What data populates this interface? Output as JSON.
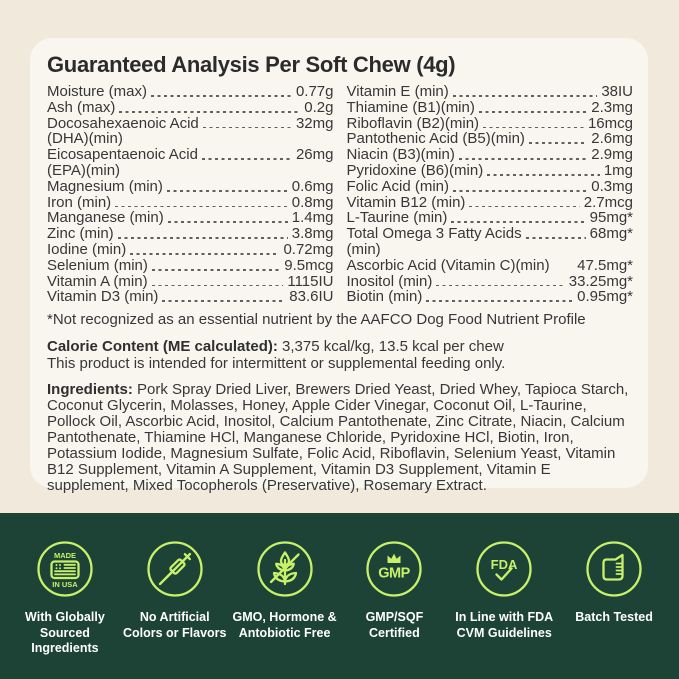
{
  "colors": {
    "page_background": "#f0e9dc",
    "card_background": "#f8f6ef",
    "text_ink": "#373737",
    "band_green": "#1d4336",
    "badge_line_green": "#c7f169",
    "badge_label_white": "#ffffff"
  },
  "panel": {
    "title": "Guaranteed Analysis Per Soft Chew (4g)",
    "analysis_left": [
      {
        "label": "Moisture (max)",
        "value": "0.77g"
      },
      {
        "label": "Ash (max)",
        "value": "0.2g"
      },
      {
        "label": "Docosahexaenoic Acid",
        "label2": "(DHA)(min)",
        "value": "32mg"
      },
      {
        "label": "Eicosapentaenoic Acid",
        "label2": "(EPA)(min)",
        "value": "26mg"
      },
      {
        "label": "Magnesium (min)",
        "value": "0.6mg"
      },
      {
        "label": "Iron (min)",
        "value": "0.8mg"
      },
      {
        "label": "Manganese (min)",
        "value": "1.4mg"
      },
      {
        "label": "Zinc (min)",
        "value": "3.8mg"
      },
      {
        "label": "Iodine (min)",
        "value": "0.72mg"
      },
      {
        "label": "Selenium (min)",
        "value": "9.5mcg"
      },
      {
        "label": "Vitamin A (min)",
        "value": "1115IU"
      },
      {
        "label": "Vitamin D3 (min)",
        "value": "83.6IU"
      }
    ],
    "analysis_right": [
      {
        "label": "Vitamin E (min)",
        "value": "38IU"
      },
      {
        "label": "Thiamine (B1)(min)",
        "value": "2.3mg"
      },
      {
        "label": "Riboflavin (B2)(min)",
        "value": "16mcg"
      },
      {
        "label": "Pantothenic Acid (B5)(min)",
        "value": "2.6mg"
      },
      {
        "label": "Niacin (B3)(min)",
        "value": "2.9mg"
      },
      {
        "label": "Pyridoxine (B6)(min)",
        "value": "1mg"
      },
      {
        "label": "Folic Acid (min)",
        "value": "0.3mg"
      },
      {
        "label": "Vitamin B12 (min)",
        "value": "2.7mcg"
      },
      {
        "label": "L-Taurine (min)",
        "value": "95mg*"
      },
      {
        "label": "Total Omega 3 Fatty Acids",
        "label2": "(min)",
        "value": "68mg*"
      },
      {
        "label": "Ascorbic Acid (Vitamin C)(min)",
        "value": "47.5mg*",
        "leader": false
      },
      {
        "label": "Inositol (min)",
        "value": "33.25mg*"
      },
      {
        "label": "Biotin (min)",
        "value": "0.95mg*"
      }
    ],
    "footnote": "*Not recognized as an essential nutrient by the AAFCO Dog Food Nutrient Profile",
    "calorie_label": "Calorie Content (ME calculated):",
    "calorie_value": "3,375 kcal/kg, 13.5 kcal per chew",
    "feeding_note": "This product is intended for intermittent or supplemental feeding only.",
    "ingredients_label": "Ingredients:",
    "ingredients_text": "Pork Spray Dried Liver, Brewers Dried Yeast, Dried Whey, Tapioca Starch, Coconut Glycerin, Molasses, Honey, Apple Cider Vinegar, Coconut Oil, L-Taurine, Pollock Oil, Ascorbic Acid, Inositol, Calcium Pantothenate, Zinc Citrate, Niacin, Calcium Pantothenate, Thiamine HCl, Manganese Chloride, Pyridoxine HCl, Biotin, Iron, Potassium Iodide, Magnesium Sulfate, Folic Acid, Riboflavin, Selenium Yeast, Vitamin B12 Supplement, Vitamin A Supplement, Vitamin D3 Supplement, Vitamin E supplement, Mixed Tocopherols (Preservative), Rosemary Extract."
  },
  "badges": [
    {
      "icon": "made-in-usa-flag-icon",
      "icon_text_top": "MADE",
      "icon_text_bottom": "IN USA",
      "label": "With Globally\nSourced\nIngredients"
    },
    {
      "icon": "no-syringe-icon",
      "label": "No Artificial\nColors or Flavors"
    },
    {
      "icon": "no-plant-icon",
      "label": "GMO, Hormone &\nAntobiotic Free"
    },
    {
      "icon": "gmp-crown-icon",
      "icon_text": "GMP",
      "label": "GMP/SQF\nCertified"
    },
    {
      "icon": "fda-check-icon",
      "icon_text": "FDA",
      "label": "In Line with FDA\nCVM Guidelines"
    },
    {
      "icon": "beaker-icon",
      "label": "Batch Tested"
    }
  ]
}
